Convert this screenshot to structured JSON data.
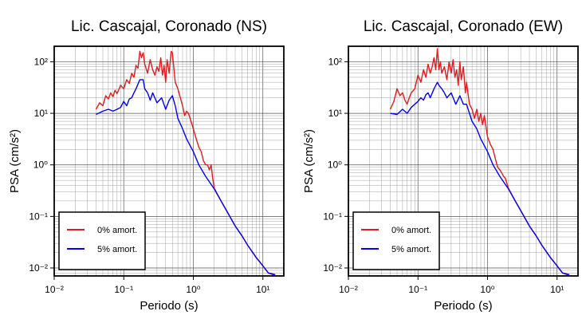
{
  "chart_data": [
    {
      "type": "line",
      "title": "Lic. Cascajal, Coronado (NS)",
      "xlabel": "Periodo (s)",
      "ylabel": "PSA (cm/s²)",
      "xscale": "log",
      "yscale": "log",
      "xlim": [
        0.01,
        20
      ],
      "ylim": [
        0.007,
        200
      ],
      "xticks": [
        "10⁻²",
        "10⁻¹",
        "10⁰",
        "10¹"
      ],
      "yticks": [
        "10⁻²",
        "10⁻¹",
        "10⁰",
        "10¹",
        "10²"
      ],
      "grid": true,
      "legend_position": "bottom-left",
      "series": [
        {
          "name": "0% amort.",
          "color": "#e41a1c",
          "x": [
            0.04,
            0.045,
            0.05,
            0.055,
            0.06,
            0.065,
            0.07,
            0.075,
            0.08,
            0.09,
            0.1,
            0.11,
            0.12,
            0.13,
            0.14,
            0.15,
            0.16,
            0.17,
            0.18,
            0.19,
            0.2,
            0.22,
            0.24,
            0.26,
            0.28,
            0.3,
            0.32,
            0.34,
            0.36,
            0.38,
            0.4,
            0.42,
            0.45,
            0.48,
            0.5,
            0.55,
            0.6,
            0.65,
            0.7,
            0.75,
            0.8,
            0.85,
            0.9,
            1.0,
            1.1,
            1.2,
            1.3,
            1.4,
            1.5,
            1.6,
            1.7,
            1.8,
            1.9,
            2.0,
            2.5,
            3.0,
            4.0,
            5.0,
            6.0,
            8.0,
            10.0,
            12.0,
            15.0
          ],
          "y": [
            12,
            16,
            14,
            22,
            19,
            25,
            21,
            28,
            24,
            35,
            30,
            45,
            38,
            60,
            50,
            85,
            75,
            160,
            120,
            150,
            90,
            60,
            110,
            70,
            55,
            80,
            65,
            120,
            55,
            85,
            40,
            110,
            60,
            160,
            150,
            40,
            30,
            20,
            14,
            9,
            11,
            10,
            8,
            5,
            3.2,
            2.2,
            1.8,
            1.2,
            1.0,
            1.0,
            0.8,
            1.0,
            0.55,
            0.35,
            0.2,
            0.13,
            0.065,
            0.042,
            0.028,
            0.016,
            0.011,
            0.008,
            0.0075
          ]
        },
        {
          "name": "5% amort.",
          "color": "#0000ff",
          "x": [
            0.04,
            0.05,
            0.06,
            0.07,
            0.08,
            0.09,
            0.1,
            0.11,
            0.12,
            0.13,
            0.14,
            0.15,
            0.17,
            0.19,
            0.2,
            0.22,
            0.24,
            0.26,
            0.3,
            0.35,
            0.4,
            0.45,
            0.5,
            0.55,
            0.6,
            0.7,
            0.8,
            1.0,
            1.2,
            1.5,
            2.0,
            2.5,
            3.0,
            4.0,
            5.0,
            6.0,
            8.0,
            10.0,
            12.0,
            15.0
          ],
          "y": [
            9.5,
            11,
            12,
            11,
            12,
            13,
            17,
            14,
            19,
            20,
            25,
            30,
            45,
            45,
            30,
            25,
            18,
            25,
            16,
            20,
            12,
            18,
            22,
            14,
            8,
            5,
            3.2,
            1.8,
            1.0,
            0.6,
            0.34,
            0.2,
            0.13,
            0.065,
            0.042,
            0.028,
            0.016,
            0.011,
            0.008,
            0.0072
          ]
        }
      ]
    },
    {
      "type": "line",
      "title": "Lic. Cascajal, Coronado (EW)",
      "xlabel": "Periodo (s)",
      "ylabel": "PSA (cm/s²)",
      "xscale": "log",
      "yscale": "log",
      "xlim": [
        0.01,
        20
      ],
      "ylim": [
        0.007,
        200
      ],
      "xticks": [
        "10⁻²",
        "10⁻¹",
        "10⁰",
        "10¹"
      ],
      "yticks": [
        "10⁻²",
        "10⁻¹",
        "10⁰",
        "10¹",
        "10²"
      ],
      "grid": true,
      "legend_position": "bottom-left",
      "series": [
        {
          "name": "0% amort.",
          "color": "#e41a1c",
          "x": [
            0.04,
            0.045,
            0.05,
            0.055,
            0.06,
            0.065,
            0.07,
            0.075,
            0.08,
            0.09,
            0.1,
            0.11,
            0.12,
            0.13,
            0.14,
            0.15,
            0.16,
            0.17,
            0.18,
            0.19,
            0.2,
            0.21,
            0.22,
            0.24,
            0.26,
            0.28,
            0.3,
            0.32,
            0.34,
            0.36,
            0.38,
            0.4,
            0.42,
            0.45,
            0.48,
            0.5,
            0.55,
            0.6,
            0.65,
            0.7,
            0.75,
            0.8,
            0.85,
            0.9,
            1.0,
            1.1,
            1.2,
            1.3,
            1.4,
            1.5,
            1.6,
            1.7,
            1.8,
            2.0,
            2.5,
            3.0,
            4.0,
            5.0,
            6.0,
            8.0,
            10.0,
            12.0,
            15.0
          ],
          "y": [
            12,
            17,
            30,
            22,
            25,
            18,
            15,
            20,
            25,
            30,
            55,
            40,
            70,
            50,
            90,
            60,
            80,
            120,
            70,
            180,
            70,
            100,
            60,
            80,
            45,
            100,
            60,
            110,
            50,
            70,
            35,
            100,
            45,
            80,
            25,
            40,
            15,
            12,
            8,
            12,
            7,
            10,
            6,
            9,
            3.5,
            2.5,
            2.0,
            1.3,
            0.9,
            0.8,
            0.7,
            0.6,
            0.55,
            0.35,
            0.2,
            0.13,
            0.065,
            0.042,
            0.028,
            0.016,
            0.011,
            0.008,
            0.0075
          ]
        },
        {
          "name": "5% amort.",
          "color": "#0000ff",
          "x": [
            0.04,
            0.05,
            0.06,
            0.07,
            0.08,
            0.09,
            0.1,
            0.11,
            0.12,
            0.13,
            0.14,
            0.15,
            0.17,
            0.19,
            0.2,
            0.22,
            0.24,
            0.26,
            0.3,
            0.35,
            0.4,
            0.45,
            0.5,
            0.55,
            0.6,
            0.7,
            0.8,
            1.0,
            1.2,
            1.5,
            2.0,
            2.5,
            3.0,
            4.0,
            5.0,
            6.0,
            8.0,
            10.0,
            12.0,
            15.0
          ],
          "y": [
            10,
            9.5,
            12,
            10,
            13,
            15,
            17,
            20,
            18,
            23,
            25,
            20,
            30,
            40,
            35,
            30,
            25,
            20,
            25,
            15,
            22,
            15,
            15,
            10,
            7,
            5,
            3.2,
            1.8,
            1.0,
            0.6,
            0.34,
            0.2,
            0.13,
            0.065,
            0.042,
            0.028,
            0.016,
            0.011,
            0.008,
            0.0072
          ]
        }
      ]
    }
  ]
}
